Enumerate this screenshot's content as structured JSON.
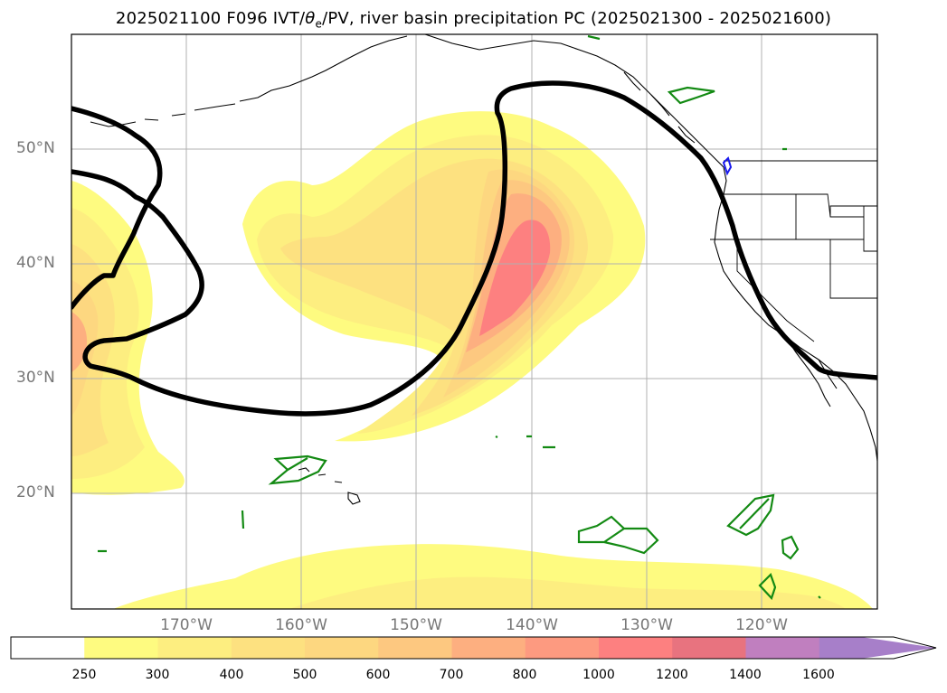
{
  "title_prefix": "2025021100 F096 IVT/",
  "title_theta": "θ",
  "title_sub": "e",
  "title_suffix": "/PV, river basin precipitation PC (2025021300 - 2025021600)",
  "map": {
    "projection": "PlateCarree",
    "lon_range": [
      -180,
      -110
    ],
    "lat_range": [
      10,
      60
    ],
    "gridlines": true,
    "lat_labels": [
      "50°N",
      "40°N",
      "30°N",
      "20°N"
    ],
    "lon_labels": [
      "170°W",
      "160°W",
      "150°W",
      "140°W",
      "130°W",
      "120°W"
    ]
  },
  "colorbar": {
    "ticks": [
      "250",
      "300",
      "400",
      "500",
      "600",
      "700",
      "800",
      "1000",
      "1200",
      "1400",
      "1600"
    ],
    "colors": [
      "#ffffff",
      "#fefb80",
      "#fdee80",
      "#fde180",
      "#fdd780",
      "#fdc880",
      "#fdaf80",
      "#fd9a80",
      "#fd8080",
      "#e8737f",
      "#c07fbf",
      "#a77fc9"
    ],
    "extend": "max"
  },
  "styles": {
    "pv_contour_color": "#000000",
    "basin_outline_color": "#138a13",
    "coastline_color": "#000000",
    "grid_color": "#b0b0b0"
  }
}
